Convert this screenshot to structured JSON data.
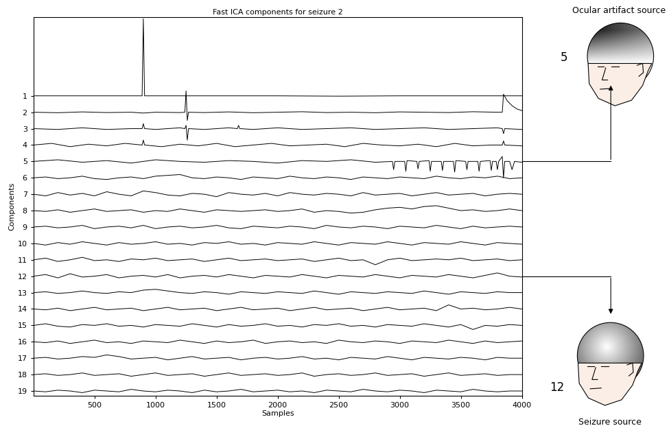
{
  "chart_data": {
    "type": "line",
    "title": "Fast ICA components for seizure 2",
    "x_label": "Samples",
    "y_label": "Components",
    "color": "#000000",
    "xlim": [
      0,
      4000
    ],
    "xticks": [
      500,
      1000,
      1500,
      2000,
      2500,
      3000,
      3500,
      4000
    ],
    "ylim": [
      19.3,
      -3.8
    ],
    "yticks": [
      1,
      2,
      3,
      4,
      5,
      6,
      7,
      8,
      9,
      10,
      11,
      12,
      13,
      14,
      15,
      16,
      17,
      18,
      19
    ],
    "x": [
      0,
      100,
      200,
      300,
      400,
      500,
      600,
      700,
      800,
      900,
      1000,
      1100,
      1200,
      1300,
      1400,
      1500,
      1600,
      1700,
      1800,
      1900,
      2000,
      2100,
      2200,
      2300,
      2400,
      2500,
      2600,
      2700,
      2800,
      2900,
      3000,
      3100,
      3200,
      3300,
      3400,
      3500,
      3600,
      3700,
      3800,
      3900,
      4000
    ],
    "series": [
      {
        "x": [
          0,
          500,
          890,
          900,
          910,
          1500,
          2000,
          2500,
          3000,
          3500,
          4000
        ],
        "values": [
          1.0,
          1.0,
          1.0,
          -3.7,
          1.0,
          1.0,
          1.0,
          1.02,
          1.0,
          1.0,
          1.0
        ]
      },
      {
        "x": [
          0,
          200,
          400,
          600,
          800,
          900,
          1000,
          1200,
          1240,
          1250,
          1260,
          1270,
          1400,
          1600,
          1800,
          2000,
          2200,
          2400,
          2600,
          2800,
          3000,
          3200,
          3400,
          3600,
          3800,
          3840,
          3850,
          3880,
          3920,
          3960,
          4000
        ],
        "values": [
          2.0,
          2.03,
          1.98,
          2.02,
          2.0,
          2.05,
          2.0,
          2.02,
          2.0,
          0.7,
          2.5,
          2.0,
          2.02,
          1.98,
          2.03,
          2.0,
          1.97,
          2.02,
          2.0,
          2.03,
          1.98,
          2.0,
          2.02,
          1.97,
          2.0,
          2.0,
          0.9,
          1.3,
          1.6,
          1.8,
          1.9
        ]
      },
      {
        "x": [
          0,
          200,
          400,
          600,
          800,
          890,
          900,
          910,
          1000,
          1200,
          1240,
          1250,
          1260,
          1270,
          1400,
          1600,
          1670,
          1680,
          1690,
          1800,
          2000,
          2200,
          2400,
          2600,
          2800,
          3000,
          3200,
          3400,
          3600,
          3800,
          3840,
          3850,
          3860,
          4000
        ],
        "values": [
          3.0,
          3.05,
          2.95,
          3.05,
          3.0,
          3.0,
          2.7,
          3.0,
          3.05,
          2.95,
          3.0,
          2.8,
          3.7,
          3.0,
          3.05,
          2.95,
          3.0,
          2.8,
          3.0,
          3.05,
          2.95,
          3.05,
          3.0,
          2.95,
          3.05,
          3.0,
          2.95,
          3.05,
          3.0,
          2.95,
          3.0,
          3.3,
          3.0,
          3.05
        ]
      },
      {
        "x": [
          0,
          150,
          300,
          450,
          600,
          750,
          890,
          900,
          910,
          1050,
          1200,
          1350,
          1500,
          1650,
          1800,
          1950,
          2100,
          2250,
          2400,
          2550,
          2700,
          2850,
          3000,
          3150,
          3300,
          3450,
          3600,
          3750,
          3840,
          3850,
          3860,
          4000
        ],
        "values": [
          4.0,
          3.9,
          4.1,
          3.95,
          4.05,
          3.9,
          4.0,
          3.7,
          4.0,
          4.1,
          3.95,
          4.05,
          3.9,
          4.1,
          4.0,
          3.9,
          4.05,
          4.0,
          3.95,
          4.1,
          3.9,
          4.0,
          4.05,
          3.95,
          4.1,
          3.9,
          4.05,
          4.0,
          4.0,
          3.75,
          4.0,
          4.05
        ]
      },
      {
        "x": [
          0,
          200,
          400,
          600,
          800,
          1000,
          1200,
          1400,
          1600,
          1800,
          2000,
          2200,
          2400,
          2600,
          2800,
          2940,
          2950,
          2960,
          3040,
          3050,
          3060,
          3140,
          3150,
          3160,
          3240,
          3250,
          3260,
          3340,
          3350,
          3360,
          3440,
          3450,
          3460,
          3540,
          3550,
          3560,
          3640,
          3650,
          3660,
          3740,
          3750,
          3760,
          3790,
          3800,
          3810,
          3840,
          3850,
          3860,
          3900,
          3920,
          3940,
          4000
        ],
        "values": [
          5.0,
          4.9,
          5.05,
          4.95,
          5.1,
          4.9,
          5.0,
          5.05,
          4.95,
          5.0,
          5.1,
          4.95,
          5.0,
          4.9,
          5.05,
          5.0,
          5.5,
          5.0,
          5.0,
          5.6,
          4.95,
          5.0,
          5.45,
          5.0,
          4.95,
          5.6,
          5.0,
          5.0,
          5.55,
          5.0,
          5.0,
          5.65,
          4.95,
          5.0,
          5.5,
          5.0,
          5.0,
          5.6,
          5.0,
          4.95,
          5.55,
          5.0,
          5.0,
          5.5,
          5.0,
          4.7,
          6.0,
          5.0,
          5.0,
          5.5,
          5.0,
          5.05
        ]
      },
      {
        "values": [
          6.0,
          5.95,
          6.05,
          6.0,
          5.9,
          6.05,
          6.1,
          6.0,
          5.95,
          6.05,
          5.9,
          5.85,
          5.8,
          6.0,
          6.05,
          5.95,
          6.0,
          6.1,
          5.95,
          6.0,
          6.05,
          5.9,
          6.0,
          6.05,
          5.95,
          6.0,
          6.1,
          5.95,
          6.0,
          6.05,
          5.95,
          6.0,
          6.05,
          5.9,
          6.0,
          6.05,
          5.95,
          6.0,
          5.9,
          6.05,
          6.0
        ]
      },
      {
        "values": [
          7.0,
          7.1,
          6.9,
          7.05,
          6.95,
          7.1,
          6.85,
          7.0,
          7.1,
          6.8,
          6.9,
          7.05,
          7.1,
          6.95,
          7.0,
          7.15,
          6.9,
          7.0,
          7.05,
          6.95,
          7.1,
          6.9,
          7.0,
          7.05,
          6.95,
          7.0,
          7.1,
          6.9,
          7.05,
          7.0,
          6.95,
          7.1,
          7.0,
          6.9,
          7.05,
          7.0,
          6.95,
          7.1,
          7.0,
          6.95,
          7.0
        ]
      },
      {
        "values": [
          8.0,
          8.05,
          7.95,
          8.1,
          8.0,
          7.9,
          8.05,
          8.0,
          7.95,
          8.1,
          8.0,
          8.05,
          7.9,
          8.0,
          8.1,
          7.95,
          8.0,
          8.05,
          8.0,
          7.95,
          8.05,
          8.0,
          7.9,
          8.1,
          8.0,
          8.05,
          8.15,
          8.1,
          7.95,
          7.85,
          7.8,
          7.9,
          7.75,
          7.7,
          7.85,
          8.0,
          7.95,
          8.05,
          8.0,
          7.9,
          8.0
        ]
      },
      {
        "values": [
          9.0,
          8.95,
          9.05,
          9.0,
          8.9,
          9.1,
          9.0,
          8.95,
          9.05,
          8.9,
          9.1,
          9.0,
          8.95,
          9.05,
          9.0,
          8.9,
          9.05,
          9.1,
          8.95,
          9.0,
          9.05,
          8.95,
          9.0,
          9.1,
          8.9,
          9.0,
          9.05,
          8.95,
          9.0,
          9.1,
          8.95,
          9.0,
          9.05,
          8.9,
          9.0,
          9.1,
          8.95,
          9.05,
          9.0,
          8.95,
          9.0
        ]
      },
      {
        "values": [
          10.0,
          10.1,
          9.95,
          10.05,
          9.9,
          10.0,
          10.1,
          9.95,
          10.05,
          10.0,
          9.9,
          10.05,
          10.0,
          10.1,
          9.95,
          10.0,
          9.9,
          10.05,
          10.0,
          10.1,
          9.95,
          10.0,
          10.05,
          9.9,
          10.0,
          10.1,
          9.95,
          10.0,
          10.05,
          9.9,
          10.0,
          10.1,
          9.95,
          10.0,
          10.05,
          9.9,
          10.0,
          10.1,
          9.95,
          10.0,
          10.05
        ]
      },
      {
        "values": [
          11.0,
          10.9,
          11.1,
          11.0,
          10.85,
          11.05,
          11.0,
          11.1,
          10.95,
          11.0,
          10.9,
          11.05,
          11.0,
          10.95,
          11.1,
          11.0,
          10.9,
          11.05,
          11.0,
          10.95,
          11.05,
          11.0,
          10.95,
          11.1,
          11.0,
          10.9,
          11.05,
          11.0,
          11.3,
          11.0,
          10.9,
          11.05,
          11.0,
          10.95,
          11.0,
          10.9,
          11.05,
          11.0,
          10.95,
          11.05,
          11.0
        ]
      },
      {
        "values": [
          12.0,
          11.9,
          12.1,
          11.85,
          12.05,
          12.0,
          11.9,
          12.1,
          12.0,
          11.95,
          12.05,
          11.9,
          12.1,
          12.0,
          11.95,
          12.05,
          11.9,
          12.0,
          12.1,
          11.95,
          12.0,
          12.05,
          11.9,
          12.0,
          12.1,
          11.95,
          12.0,
          12.05,
          11.9,
          12.0,
          12.1,
          11.95,
          12.0,
          12.05,
          11.9,
          12.0,
          12.1,
          11.95,
          11.8,
          12.0,
          12.05
        ]
      },
      {
        "values": [
          13.0,
          12.95,
          13.05,
          13.0,
          12.9,
          13.0,
          13.05,
          12.95,
          13.0,
          12.85,
          12.8,
          12.9,
          13.0,
          13.05,
          12.95,
          13.0,
          13.1,
          12.95,
          13.0,
          13.05,
          12.95,
          13.0,
          13.05,
          12.9,
          13.0,
          13.1,
          12.95,
          13.0,
          13.05,
          12.95,
          13.0,
          13.05,
          12.9,
          13.0,
          13.1,
          12.95,
          13.0,
          13.05,
          12.95,
          13.0,
          13.0
        ]
      },
      {
        "values": [
          14.0,
          14.05,
          13.95,
          14.1,
          14.0,
          13.9,
          14.05,
          14.0,
          13.95,
          14.1,
          14.0,
          13.9,
          14.05,
          14.0,
          13.95,
          14.1,
          14.0,
          13.9,
          14.05,
          14.0,
          13.95,
          14.1,
          14.0,
          13.9,
          14.05,
          14.0,
          13.95,
          14.1,
          14.0,
          13.9,
          14.05,
          14.0,
          13.95,
          14.1,
          13.75,
          14.0,
          13.95,
          14.05,
          14.0,
          13.9,
          14.0
        ]
      },
      {
        "values": [
          15.0,
          14.9,
          15.05,
          15.1,
          14.95,
          15.0,
          14.9,
          15.05,
          15.0,
          15.1,
          14.95,
          15.0,
          15.05,
          14.9,
          15.0,
          15.1,
          14.95,
          15.05,
          15.0,
          14.9,
          15.05,
          15.0,
          15.1,
          14.95,
          15.0,
          14.9,
          15.05,
          15.0,
          15.1,
          14.95,
          15.0,
          15.05,
          14.9,
          15.0,
          15.1,
          14.95,
          15.25,
          15.0,
          15.05,
          14.95,
          15.0
        ]
      },
      {
        "values": [
          16.0,
          16.05,
          15.95,
          16.1,
          16.0,
          15.9,
          16.05,
          16.0,
          16.1,
          15.95,
          16.0,
          16.05,
          15.9,
          16.0,
          16.1,
          15.95,
          16.05,
          16.0,
          15.9,
          16.1,
          16.0,
          15.95,
          16.05,
          16.0,
          16.1,
          15.9,
          16.0,
          16.05,
          15.95,
          16.0,
          16.1,
          15.95,
          16.0,
          16.05,
          15.9,
          16.0,
          16.1,
          15.95,
          16.05,
          16.0,
          15.95
        ]
      },
      {
        "values": [
          17.0,
          16.95,
          17.05,
          17.0,
          16.9,
          16.95,
          16.8,
          16.9,
          17.05,
          17.0,
          16.95,
          17.1,
          17.0,
          16.9,
          17.05,
          17.0,
          16.95,
          17.1,
          17.0,
          16.95,
          17.05,
          17.0,
          16.9,
          17.05,
          17.0,
          17.1,
          16.95,
          17.0,
          17.05,
          16.9,
          17.0,
          17.1,
          16.95,
          17.0,
          17.05,
          16.95,
          17.0,
          17.1,
          16.95,
          17.0,
          17.0
        ]
      },
      {
        "values": [
          18.0,
          17.95,
          18.05,
          18.0,
          17.9,
          18.05,
          18.0,
          17.95,
          18.1,
          18.0,
          17.9,
          18.05,
          18.0,
          17.95,
          18.1,
          18.0,
          17.9,
          18.05,
          18.0,
          17.95,
          18.05,
          18.0,
          17.9,
          18.1,
          18.0,
          17.95,
          18.05,
          18.0,
          17.9,
          18.05,
          18.0,
          17.95,
          18.1,
          18.0,
          17.9,
          18.05,
          18.0,
          17.95,
          18.05,
          18.0,
          18.0
        ]
      },
      {
        "values": [
          19.0,
          19.05,
          18.95,
          19.0,
          19.1,
          18.95,
          19.0,
          19.05,
          18.9,
          19.0,
          19.05,
          18.95,
          19.0,
          19.1,
          18.95,
          19.05,
          19.0,
          18.9,
          19.05,
          19.0,
          18.95,
          19.05,
          19.0,
          19.1,
          18.95,
          19.0,
          19.05,
          18.9,
          19.0,
          19.05,
          18.95,
          19.0,
          19.1,
          18.95,
          19.0,
          19.05,
          18.9,
          19.0,
          19.05,
          19.0,
          19.0
        ]
      }
    ],
    "annotations": [
      {
        "label": "Ocular artifact source",
        "component": 5
      },
      {
        "label": "Seizure source",
        "component": 12
      }
    ]
  }
}
